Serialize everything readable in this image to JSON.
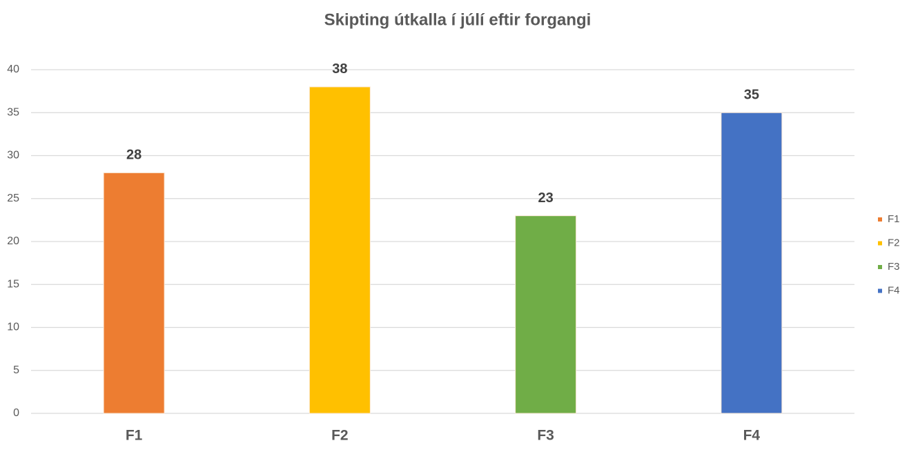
{
  "chart_data": {
    "type": "bar",
    "title": "Skipting útkalla í júlí eftir forgangi",
    "categories": [
      "F1",
      "F2",
      "F3",
      "F4"
    ],
    "values": [
      28,
      38,
      23,
      35
    ],
    "colors": [
      "#ed7d31",
      "#ffc000",
      "#70ad47",
      "#4472c4"
    ],
    "ylim": [
      0,
      40
    ],
    "yticks": [
      0,
      5,
      10,
      15,
      20,
      25,
      30,
      35,
      40
    ],
    "grid": true,
    "legend": "right"
  }
}
